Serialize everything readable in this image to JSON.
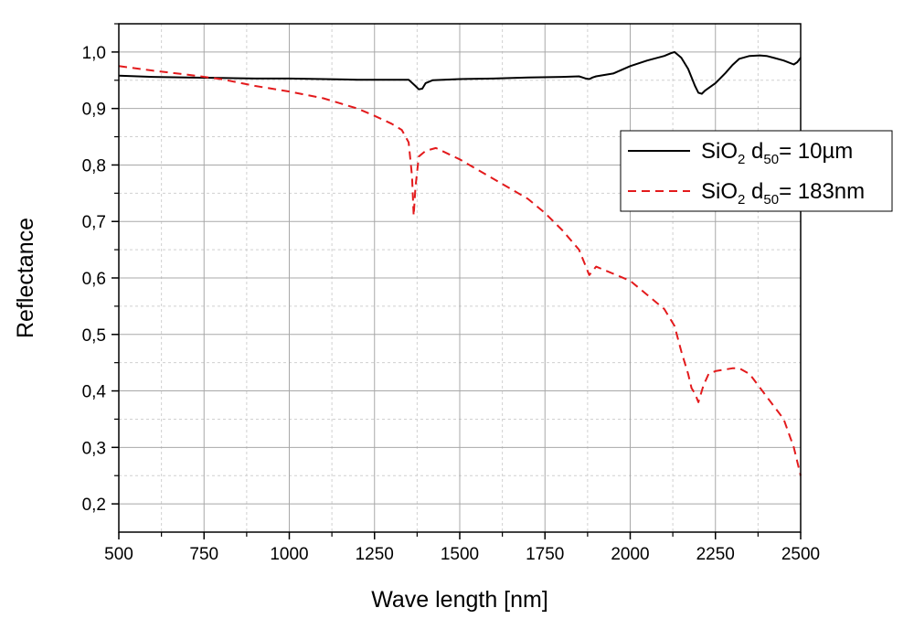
{
  "chart_data": {
    "type": "line",
    "xlabel": "Wave length [nm]",
    "ylabel": "Reflectance",
    "xlim": [
      500,
      2500
    ],
    "ylim": [
      0.15,
      1.05
    ],
    "x_ticks": [
      500,
      750,
      1000,
      1250,
      1500,
      1750,
      2000,
      2250,
      2500
    ],
    "y_ticks": [
      0.2,
      0.3,
      0.4,
      0.5,
      0.6,
      0.7,
      0.8,
      0.9,
      1.0
    ],
    "y_tick_labels": [
      "0,2",
      "0,3",
      "0,4",
      "0,5",
      "0,6",
      "0,7",
      "0,8",
      "0,9",
      "1,0"
    ],
    "grid": true,
    "legend_position": "right",
    "series": [
      {
        "name": "SiO2 d50= 10µm",
        "legend": {
          "base": "SiO",
          "sub1": "2",
          "mid": " d",
          "sub2": "50",
          "tail": "= 10µm"
        },
        "color": "#000000",
        "style": "solid",
        "x": [
          500,
          600,
          700,
          800,
          900,
          1000,
          1100,
          1200,
          1300,
          1350,
          1370,
          1380,
          1390,
          1400,
          1420,
          1500,
          1600,
          1700,
          1800,
          1850,
          1870,
          1880,
          1890,
          1900,
          1950,
          2000,
          2050,
          2100,
          2120,
          2130,
          2150,
          2170,
          2190,
          2200,
          2210,
          2220,
          2250,
          2280,
          2300,
          2320,
          2350,
          2380,
          2400,
          2420,
          2450,
          2480,
          2490,
          2500
        ],
        "y": [
          0.958,
          0.956,
          0.955,
          0.954,
          0.953,
          0.953,
          0.952,
          0.951,
          0.951,
          0.951,
          0.94,
          0.934,
          0.935,
          0.945,
          0.95,
          0.952,
          0.953,
          0.955,
          0.956,
          0.957,
          0.953,
          0.952,
          0.955,
          0.957,
          0.962,
          0.975,
          0.985,
          0.993,
          0.998,
          1.0,
          0.99,
          0.97,
          0.94,
          0.928,
          0.926,
          0.932,
          0.945,
          0.963,
          0.977,
          0.988,
          0.993,
          0.994,
          0.993,
          0.99,
          0.985,
          0.978,
          0.982,
          0.99
        ]
      },
      {
        "name": "SiO2 d50= 183nm",
        "legend": {
          "base": "SiO",
          "sub1": "2",
          "mid": " d",
          "sub2": "50",
          "tail": "= 183nm"
        },
        "color": "#e31a1c",
        "style": "dashed",
        "x": [
          500,
          600,
          700,
          800,
          900,
          1000,
          1100,
          1200,
          1250,
          1300,
          1330,
          1350,
          1360,
          1365,
          1370,
          1380,
          1400,
          1430,
          1500,
          1600,
          1700,
          1750,
          1800,
          1850,
          1870,
          1880,
          1900,
          2000,
          2050,
          2100,
          2130,
          2150,
          2170,
          2180,
          2190,
          2200,
          2215,
          2230,
          2250,
          2300,
          2320,
          2350,
          2400,
          2450,
          2480,
          2500
        ],
        "y": [
          0.975,
          0.967,
          0.96,
          0.952,
          0.94,
          0.93,
          0.918,
          0.9,
          0.887,
          0.873,
          0.862,
          0.84,
          0.78,
          0.71,
          0.76,
          0.815,
          0.825,
          0.83,
          0.81,
          0.775,
          0.74,
          0.715,
          0.685,
          0.65,
          0.62,
          0.605,
          0.62,
          0.595,
          0.57,
          0.545,
          0.515,
          0.47,
          0.43,
          0.405,
          0.395,
          0.38,
          0.41,
          0.43,
          0.435,
          0.44,
          0.44,
          0.43,
          0.39,
          0.35,
          0.3,
          0.25
        ]
      }
    ]
  }
}
